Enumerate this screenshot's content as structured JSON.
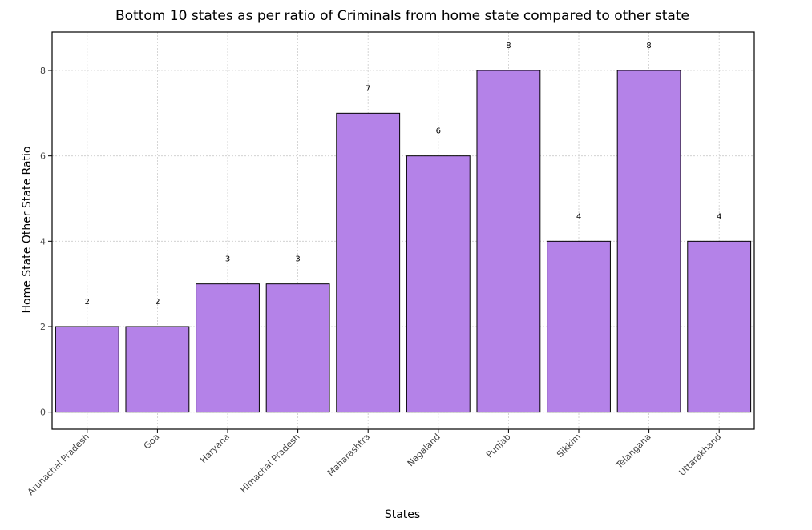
{
  "chart_data": {
    "type": "bar",
    "title": "Bottom 10 states as per ratio of Criminals from home state compared to other state",
    "xlabel": "States",
    "ylabel": "Home State Other State Ratio",
    "categories": [
      "Arunachal Pradesh",
      "Goa",
      "Haryana",
      "Himachal Pradesh",
      "Maharashtra",
      "Nagaland",
      "Punjab",
      "Sikkim",
      "Telangana",
      "Uttarakhand"
    ],
    "values": [
      2,
      2,
      3,
      3,
      7,
      6,
      8,
      4,
      8,
      4
    ],
    "data_labels": [
      "2",
      "2",
      "3",
      "3",
      "7",
      "6",
      "8",
      "4",
      "8",
      "4"
    ],
    "yticks": [
      0,
      2,
      4,
      6,
      8
    ],
    "ylim": [
      -0.4,
      8.9
    ],
    "grid": true,
    "bar_color": "#b482e8",
    "bar_edge_color": "#000000"
  }
}
